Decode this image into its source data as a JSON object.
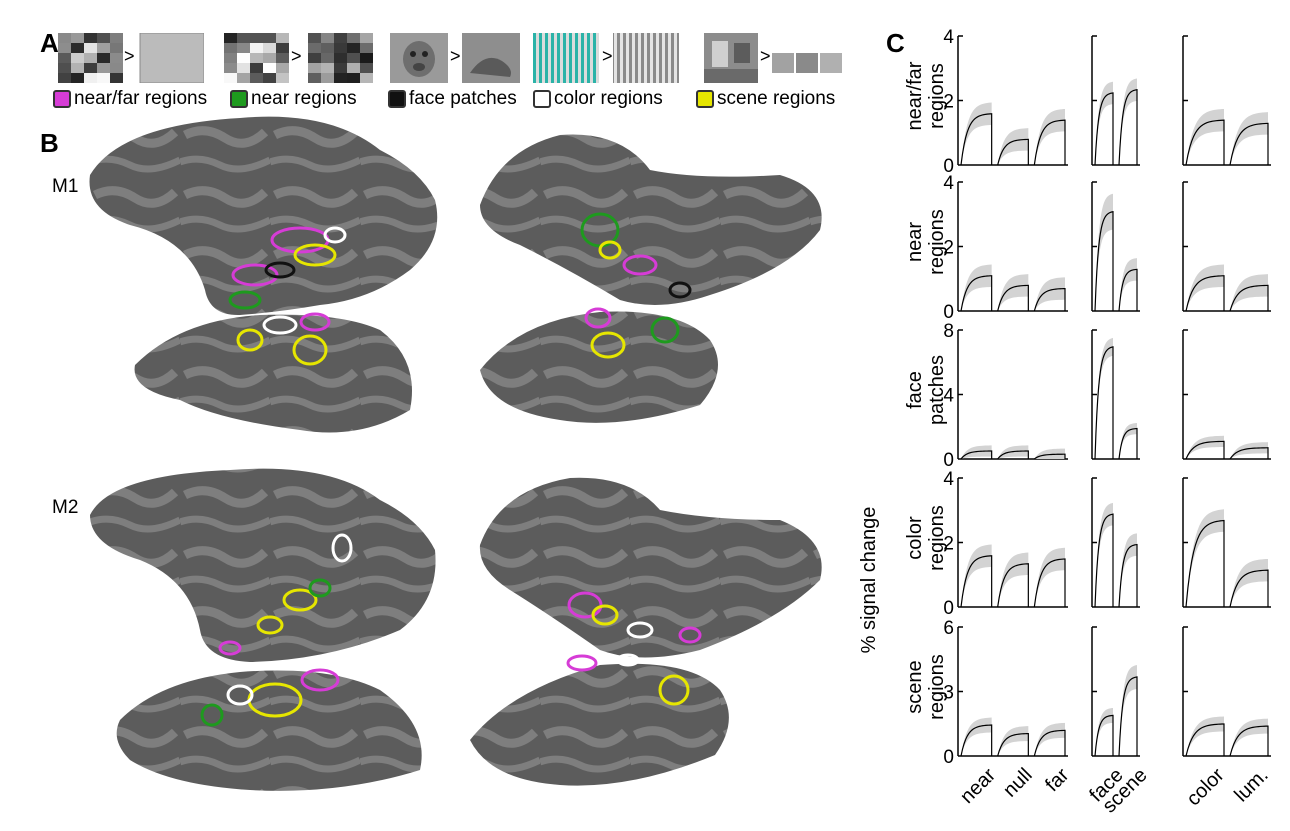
{
  "panels": {
    "a": "A",
    "b": "B",
    "c": "C"
  },
  "panel_a": {
    "comparisons": [
      {
        "name": "near-vs-far",
        "colors": {
          "bg": "#bbbbbb"
        }
      },
      {
        "name": "near-vs-null"
      },
      {
        "name": "face-vs-object"
      },
      {
        "name": "color-vs-lum"
      },
      {
        "name": "scene-vs-object"
      }
    ],
    "separator": ">",
    "legend": [
      {
        "label": "near/far regions",
        "color": "#d63cd6"
      },
      {
        "label": "near regions",
        "color": "#1e9a1e"
      },
      {
        "label": "face patches",
        "color": "#111111"
      },
      {
        "label": "color regions",
        "color": "#ffffff"
      },
      {
        "label": "scene regions",
        "color": "#e6e600"
      }
    ]
  },
  "panel_b": {
    "monkeys": [
      "M1",
      "M2"
    ],
    "colors": {
      "cortex_dark": "#5a5a5a",
      "cortex_light": "#7d7d7d"
    }
  },
  "chart_data": {
    "type": "line",
    "description_axis": "% signal change",
    "rows": [
      {
        "label_lines": [
          "near/far",
          "regions"
        ],
        "ylim": [
          0,
          4
        ],
        "yticks": [
          "4",
          "2",
          "0"
        ]
      },
      {
        "label_lines": [
          "near",
          "regions"
        ],
        "ylim": [
          0,
          4
        ],
        "yticks": [
          "4",
          "2",
          "0"
        ]
      },
      {
        "label_lines": [
          "face",
          "patches"
        ],
        "ylim": [
          0,
          8
        ],
        "yticks": [
          "8",
          "4",
          "0"
        ]
      },
      {
        "label_lines": [
          "color",
          "regions"
        ],
        "ylim": [
          0,
          4
        ],
        "yticks": [
          "4",
          "2",
          "0"
        ]
      },
      {
        "label_lines": [
          "scene",
          "regions"
        ],
        "ylim": [
          0,
          6
        ],
        "yticks": [
          "6",
          "3",
          "0"
        ]
      }
    ],
    "groups": [
      {
        "conditions": [
          "near",
          "null",
          "far"
        ]
      },
      {
        "conditions": [
          "face",
          "scene"
        ]
      },
      {
        "conditions": [
          "color",
          "lum."
        ]
      }
    ],
    "plateau_values": [
      [
        [
          1.6,
          0.8,
          1.4
        ],
        [
          2.25,
          2.35
        ],
        [
          1.4,
          1.3
        ]
      ],
      [
        [
          1.1,
          0.8,
          0.7
        ],
        [
          3.1,
          1.3
        ],
        [
          1.1,
          0.8
        ]
      ],
      [
        [
          0.5,
          0.5,
          0.3
        ],
        [
          7.0,
          1.9
        ],
        [
          1.1,
          0.7
        ]
      ],
      [
        [
          1.6,
          1.35,
          1.5
        ],
        [
          2.9,
          1.95
        ],
        [
          2.7,
          1.15
        ]
      ],
      [
        [
          1.45,
          1.05,
          1.2
        ],
        [
          1.9,
          3.7
        ],
        [
          1.5,
          1.4
        ]
      ]
    ],
    "error_band": 0.35,
    "colors": {
      "line": "#000000",
      "band": "#d3d3d3"
    }
  }
}
